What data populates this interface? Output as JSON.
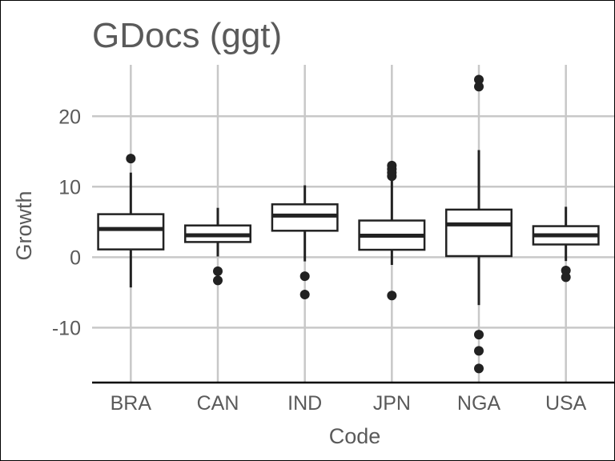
{
  "chart_data": {
    "type": "boxplot",
    "title": "GDocs (ggt)",
    "xlabel": "Code",
    "ylabel": "Growth",
    "ylim": [
      -17.8,
      27.3
    ],
    "yticks": [
      20,
      10,
      0,
      -10
    ],
    "ytick_labels": [
      "20",
      "10",
      "0",
      "-10"
    ],
    "grid": true,
    "categories": [
      "BRA",
      "CAN",
      "IND",
      "JPN",
      "NGA",
      "USA"
    ],
    "boxes": [
      {
        "name": "BRA",
        "whisker_low": -4.3,
        "q1": 1.1,
        "median": 4.0,
        "q3": 6.1,
        "whisker_high": 12.0,
        "outliers": [
          14.0
        ]
      },
      {
        "name": "CAN",
        "whisker_low": 0.1,
        "q1": 2.15,
        "median": 3.1,
        "q3": 4.5,
        "whisker_high": 7.0,
        "outliers": [
          -2.0,
          -3.3
        ]
      },
      {
        "name": "IND",
        "whisker_low": -0.6,
        "q1": 3.75,
        "median": 5.9,
        "q3": 7.5,
        "whisker_high": 10.2,
        "outliers": [
          -2.7,
          -5.3
        ]
      },
      {
        "name": "JPN",
        "whisker_low": -1.1,
        "q1": 1.05,
        "median": 3.05,
        "q3": 5.2,
        "whisker_high": 11.0,
        "outliers": [
          11.5,
          12.0,
          12.5,
          13.0,
          -5.45
        ]
      },
      {
        "name": "NGA",
        "whisker_low": -6.8,
        "q1": 0.15,
        "median": 4.65,
        "q3": 6.75,
        "whisker_high": 15.2,
        "outliers": [
          24.2,
          25.2,
          -11.0,
          -13.3,
          -15.8
        ]
      },
      {
        "name": "USA",
        "whisker_low": -0.55,
        "q1": 1.8,
        "median": 3.1,
        "q3": 4.4,
        "whisker_high": 7.15,
        "outliers": [
          -1.9,
          -2.85
        ]
      }
    ],
    "colors": {
      "box_line": "#222222",
      "grid": "#c8c8c8",
      "text": "#5a5a5a",
      "axis": "#000000"
    }
  }
}
